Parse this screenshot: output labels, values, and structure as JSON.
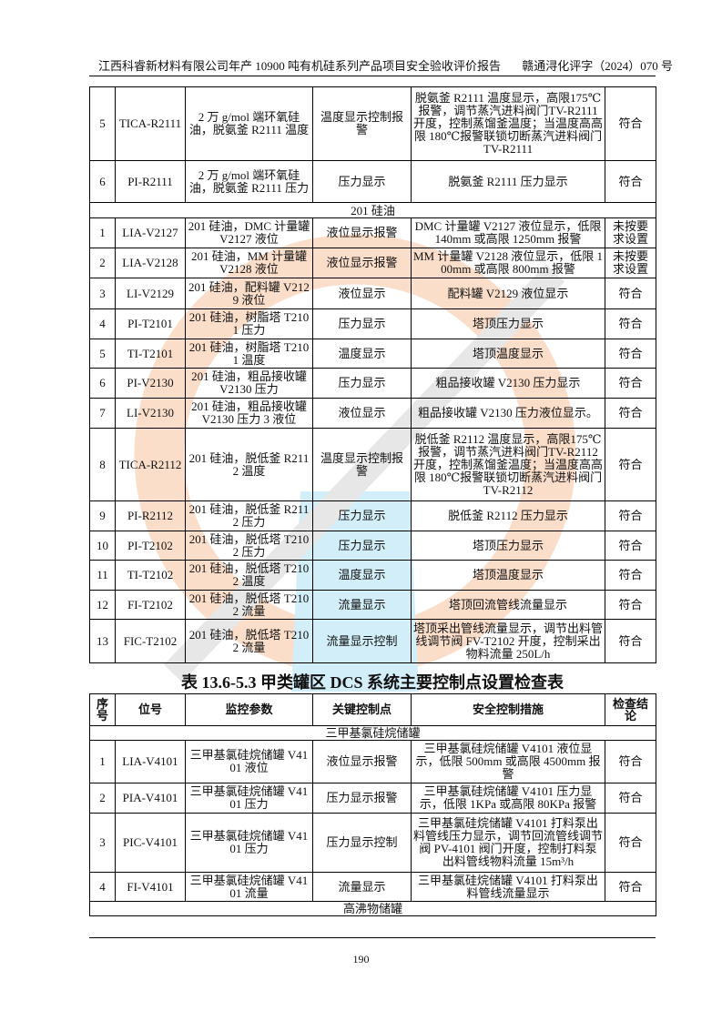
{
  "header": {
    "title": "江西科睿新材料有限公司年产 10900 吨有机硅系列产品项目安全验收评价报告",
    "doc_no": "赣通浔化评字（2024）070 号"
  },
  "table1": {
    "rows": [
      {
        "type": "row",
        "cells": [
          "5",
          "TICA-R2111",
          "2 万 g/mol 端环氧硅油，脱氨釜 R2111 温度",
          "温度显示控制报警",
          "脱氨釜 R2111 温度显示，高限175℃报警，调节蒸汽进料阀门TV-R2111 开度，控制蒸馏釜温度；当温度高高限 180℃报警联锁切断蒸汽进料阀门 TV-R2111",
          "符合"
        ]
      },
      {
        "type": "row",
        "cells": [
          "6",
          "PI-R2111",
          "2 万 g/mol 端环氧硅油，脱氨釜 R2111 压力",
          "压力显示",
          "脱氨釜 R2111 压力显示",
          "符合"
        ]
      },
      {
        "type": "section",
        "label": "201 硅油"
      },
      {
        "type": "row",
        "cells": [
          "1",
          "LIA-V2127",
          "201 硅油，DMC 计量罐 V2127 液位",
          "液位显示报警",
          "DMC 计量罐 V2127 液位显示，低限 140mm 或高限 1250mm 报警",
          "未按要求设置"
        ]
      },
      {
        "type": "row",
        "cells": [
          "2",
          "LIA-V2128",
          "201 硅油，MM 计量罐 V2128 液位",
          "液位显示报警",
          "MM 计量罐 V2128 液位显示，低限 100mm 或高限 800mm 报警",
          "未按要求设置"
        ]
      },
      {
        "type": "row",
        "cells": [
          "3",
          "LI-V2129",
          "201 硅油，配料罐 V2129 液位",
          "液位显示",
          "配料罐 V2129 液位显示",
          "符合"
        ]
      },
      {
        "type": "row",
        "cells": [
          "4",
          "PI-T2101",
          "201 硅油，树脂塔 T2101 压力",
          "压力显示",
          "塔顶压力显示",
          "符合"
        ]
      },
      {
        "type": "row",
        "cells": [
          "5",
          "TI-T2101",
          "201 硅油，树脂塔 T2101 温度",
          "温度显示",
          "塔顶温度显示",
          "符合"
        ]
      },
      {
        "type": "row",
        "cells": [
          "6",
          "PI-V2130",
          "201 硅油，粗品接收罐 V2130 压力",
          "压力显示",
          "粗品接收罐 V2130 压力显示",
          "符合"
        ]
      },
      {
        "type": "row",
        "cells": [
          "7",
          "LI-V2130",
          "201 硅油，粗品接收罐 V2130 压力 3 液位",
          "液位显示",
          "粗品接收罐 V2130 压力液位显示。",
          "符合"
        ]
      },
      {
        "type": "row",
        "cells": [
          "8",
          "TICA-R2112",
          "201 硅油，脱低釜 R2112 温度",
          "温度显示控制报警",
          "脱低釜 R2112 温度显示，高限175℃报警，调节蒸汽进料阀门TV-R2112 开度，控制蒸馏釜温度；当温度高高限 180℃报警联锁切断蒸汽进料阀门 TV-R2112",
          "符合"
        ]
      },
      {
        "type": "row",
        "cells": [
          "9",
          "PI-R2112",
          "201 硅油，脱低釜 R2112 压力",
          "压力显示",
          "脱低釜 R2112 压力显示",
          "符合"
        ]
      },
      {
        "type": "row",
        "cells": [
          "10",
          "PI-T2102",
          "201 硅油，脱低塔 T2102 压力",
          "压力显示",
          "塔顶压力显示",
          "符合"
        ]
      },
      {
        "type": "row",
        "cells": [
          "11",
          "TI-T2102",
          "201 硅油，脱低塔 T2102 温度",
          "温度显示",
          "塔顶温度显示",
          "符合"
        ]
      },
      {
        "type": "row",
        "cells": [
          "12",
          "FI-T2102",
          "201 硅油，脱低塔 T2102 流量",
          "流量显示",
          "塔顶回流管线流量显示",
          "符合"
        ]
      },
      {
        "type": "row",
        "cells": [
          "13",
          "FIC-T2102",
          "201 硅油，脱低塔 T2102 流量",
          "流量显示控制",
          "塔顶采出管线流量显示，调节出料管线调节阀 FV-T2102 开度，控制采出物料流量 250L/h",
          "符合"
        ]
      }
    ]
  },
  "caption": "表 13.6-5.3  甲类罐区  DCS 系统主要控制点设置检查表",
  "table2": {
    "headers": [
      "序号",
      "位号",
      "监控参数",
      "关键控制点",
      "安全控制措施",
      "检查结论"
    ],
    "rows": [
      {
        "type": "section",
        "label": "三甲基氯硅烷储罐"
      },
      {
        "type": "row",
        "cells": [
          "1",
          "LIA-V4101",
          "三甲基氯硅烷储罐 V4101 液位",
          "液位显示报警",
          "三甲基氯硅烷储罐 V4101 液位显示，低限 500mm 或高限 4500mm 报警",
          "符合"
        ]
      },
      {
        "type": "row",
        "cells": [
          "2",
          "PIA-V4101",
          "三甲基氯硅烷储罐 V4101 压力",
          "压力显示报警",
          "三甲基氯硅烷储罐 V4101 压力显示，低限 1KPa 或高限 80KPa 报警",
          "符合"
        ]
      },
      {
        "type": "row",
        "cells": [
          "3",
          "PIC-V4101",
          "三甲基氯硅烷储罐 V4101 压力",
          "压力显示控制",
          "三甲基氯硅烷储罐 V4101 打料泵出料管线压力显示，调节回流管线调节阀 PV-4101 阀门开度，控制打料泵出料管线物料流量 15m³/h",
          "符合"
        ]
      },
      {
        "type": "row",
        "cells": [
          "4",
          "FI-V4101",
          "三甲基氯硅烷储罐 V4101 流量",
          "流量显示",
          "三甲基氯硅烷储罐 V4101 打料泵出料管线流量显示",
          "符合"
        ]
      },
      {
        "type": "section",
        "label": "高沸物储罐"
      }
    ]
  },
  "footer": {
    "page_number": "190"
  },
  "colors": {
    "watermark_orange": "#f5a36a",
    "watermark_blue": "#7fd0ee"
  }
}
